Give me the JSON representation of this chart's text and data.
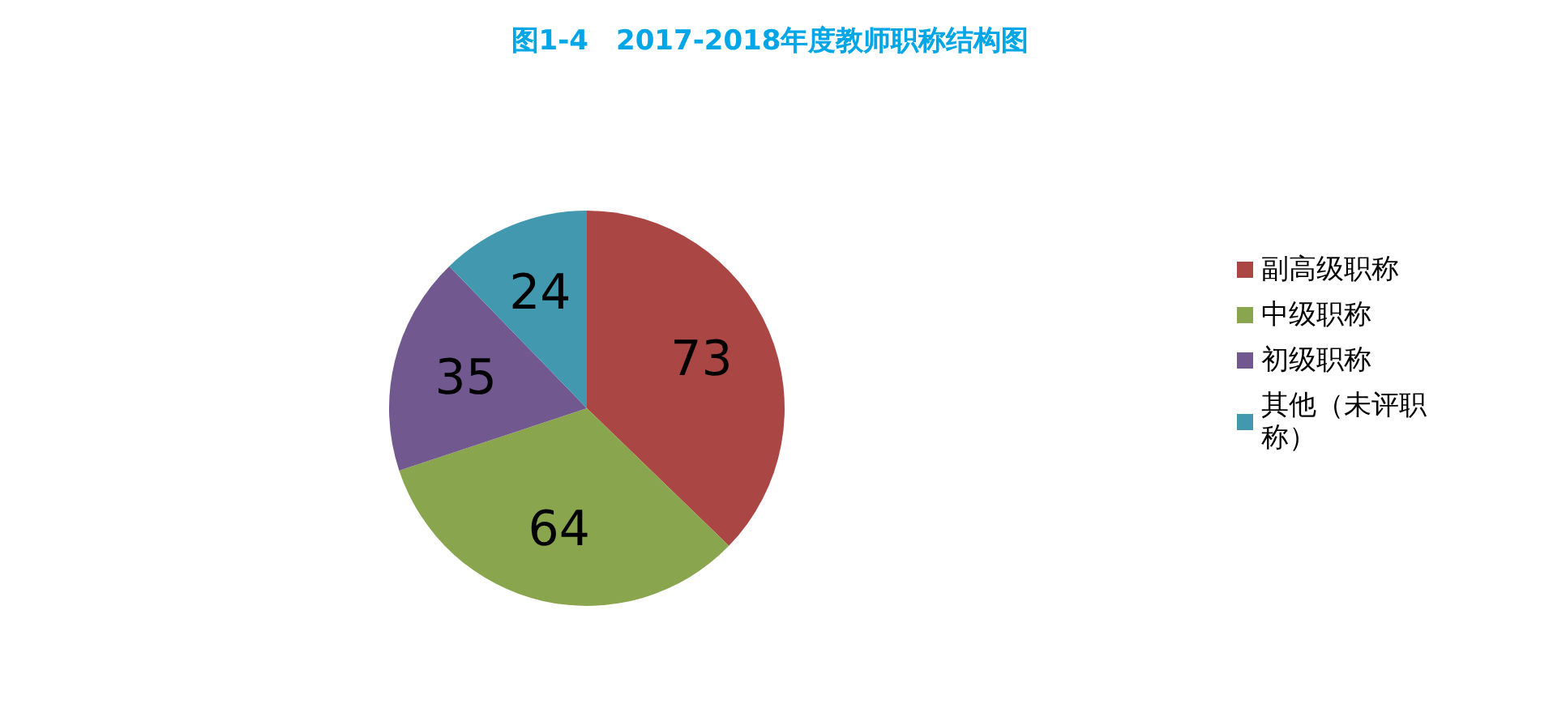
{
  "chart_data": {
    "type": "pie",
    "title": "图1-4　2017-2018年度教师职称结构图",
    "categories": [
      "副高级职称",
      "中级职称",
      "初级职称",
      "其他（未评职称）"
    ],
    "values": [
      73,
      64,
      35,
      24
    ],
    "colors": [
      "#aa4643",
      "#89a54e",
      "#71588f",
      "#4198af"
    ],
    "data_labels": true,
    "legend": "right"
  }
}
